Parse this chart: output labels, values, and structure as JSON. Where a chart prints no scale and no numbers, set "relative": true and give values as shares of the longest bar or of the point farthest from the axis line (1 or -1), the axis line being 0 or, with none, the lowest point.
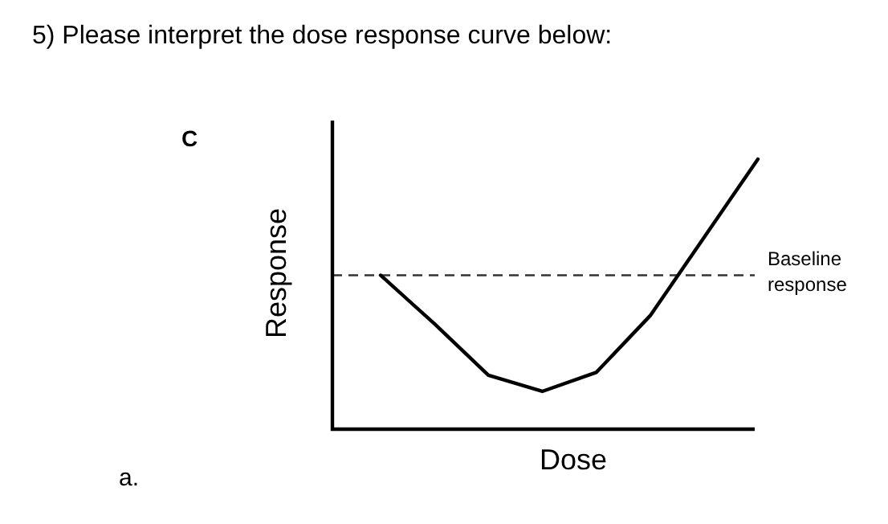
{
  "chart_data": {
    "type": "line",
    "title": "5) Please interpret the dose response curve below:",
    "subtitle": "C",
    "xlabel": "Dose",
    "ylabel": "Response",
    "relative": true,
    "categories": [
      null,
      null,
      null,
      null,
      null,
      null,
      null,
      null
    ],
    "series": [
      {
        "color": "#000000",
        "values": [
          0.57,
          0.39,
          0.2,
          0.14,
          0.21,
          0.42,
          0.71,
          1
        ]
      }
    ],
    "ref_lines": [
      {
        "axis": "y",
        "value": 0.57,
        "label": "Baseline response",
        "color": "#333333",
        "line_style": "dashed"
      }
    ],
    "marker": "none",
    "line_style": "solid",
    "grid": false,
    "annotations": [
      "a."
    ]
  }
}
